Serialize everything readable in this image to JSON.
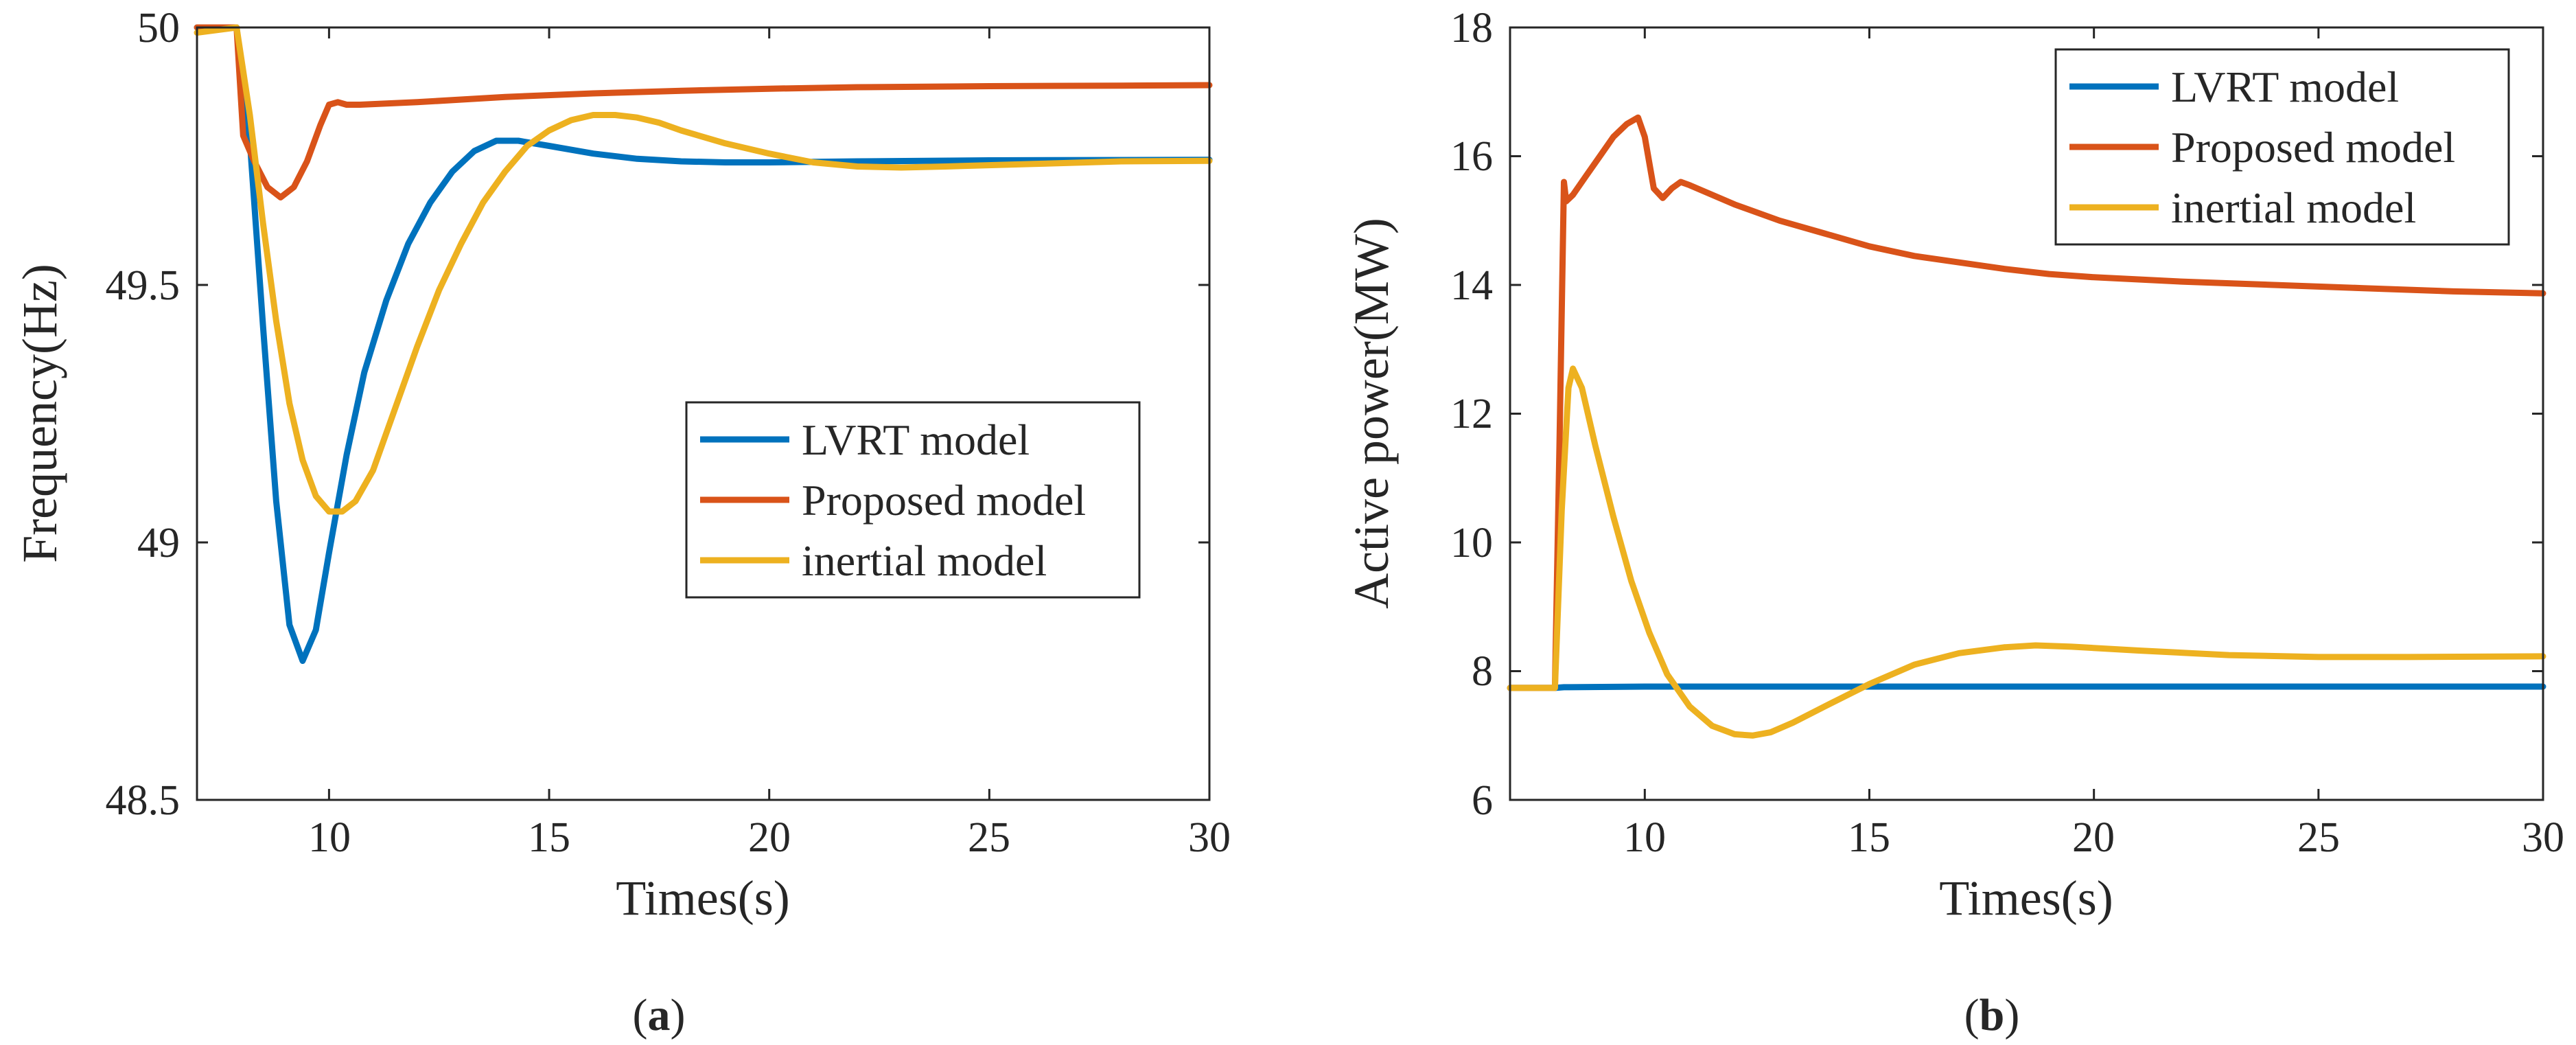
{
  "chart_data": [
    {
      "type": "line",
      "id": "a",
      "panel_label": "a",
      "xlabel": "Times(s)",
      "ylabel": "Frequency(Hz)",
      "xlim": [
        7,
        30
      ],
      "ylim": [
        48.5,
        50
      ],
      "xticks": [
        10,
        15,
        20,
        25,
        30
      ],
      "yticks": [
        48.5,
        49,
        49.5,
        50
      ],
      "ytick_labels": [
        "48.5",
        "49",
        "49.5",
        "50"
      ],
      "legend_position": "center-right",
      "series": [
        {
          "name": "LVRT model",
          "color": "#0072BD",
          "x": [
            7,
            7.9,
            8.2,
            8.5,
            8.8,
            9.1,
            9.4,
            9.7,
            10.0,
            10.4,
            10.8,
            11.3,
            11.8,
            12.3,
            12.8,
            13.3,
            13.8,
            14.3,
            15,
            16,
            17,
            18,
            19,
            20,
            22,
            25,
            30
          ],
          "values": [
            50,
            50,
            49.78,
            49.42,
            49.08,
            48.84,
            48.77,
            48.83,
            48.98,
            49.17,
            49.33,
            49.47,
            49.58,
            49.66,
            49.72,
            49.76,
            49.78,
            49.78,
            49.77,
            49.755,
            49.745,
            49.74,
            49.738,
            49.738,
            49.74,
            49.742,
            49.743
          ]
        },
        {
          "name": "Proposed model",
          "color": "#D95319",
          "x": [
            7,
            7.9,
            8.05,
            8.3,
            8.6,
            8.9,
            9.2,
            9.5,
            9.8,
            10.0,
            10.2,
            10.4,
            10.7,
            12,
            14,
            16,
            18,
            20,
            22,
            25,
            28,
            30
          ],
          "values": [
            50,
            50,
            49.79,
            49.74,
            49.69,
            49.67,
            49.69,
            49.74,
            49.81,
            49.85,
            49.855,
            49.85,
            49.85,
            49.855,
            49.865,
            49.872,
            49.877,
            49.881,
            49.884,
            49.886,
            49.887,
            49.888
          ]
        },
        {
          "name": "inertial model",
          "color": "#EDB120",
          "x": [
            7,
            7.9,
            8.2,
            8.5,
            8.8,
            9.1,
            9.4,
            9.7,
            10.0,
            10.3,
            10.6,
            11.0,
            11.5,
            12.0,
            12.5,
            13.0,
            13.5,
            14.0,
            14.5,
            15.0,
            15.5,
            16.0,
            16.5,
            17.0,
            17.5,
            18,
            19,
            20,
            21,
            22,
            23,
            24,
            26,
            28,
            30
          ],
          "values": [
            49.99,
            50,
            49.83,
            49.62,
            49.43,
            49.27,
            49.16,
            49.09,
            49.06,
            49.06,
            49.08,
            49.14,
            49.26,
            49.38,
            49.49,
            49.58,
            49.66,
            49.72,
            49.77,
            49.8,
            49.82,
            49.83,
            49.83,
            49.825,
            49.815,
            49.8,
            49.775,
            49.755,
            49.738,
            49.73,
            49.728,
            49.73,
            49.735,
            49.74,
            49.741
          ]
        }
      ]
    },
    {
      "type": "line",
      "id": "b",
      "panel_label": "b",
      "xlabel": "Times(s)",
      "ylabel": "Active power(MW)",
      "xlim": [
        7,
        30
      ],
      "ylim": [
        6,
        18
      ],
      "xticks": [
        10,
        15,
        20,
        25,
        30
      ],
      "yticks": [
        6,
        8,
        10,
        12,
        14,
        16,
        18
      ],
      "ytick_labels": [
        "6",
        "8",
        "10",
        "12",
        "14",
        "16",
        "18"
      ],
      "legend_position": "top-right",
      "series": [
        {
          "name": "LVRT model",
          "color": "#0072BD",
          "x": [
            7,
            8.0,
            8.2,
            10,
            15,
            20,
            25,
            30
          ],
          "values": [
            7.74,
            7.74,
            7.75,
            7.76,
            7.76,
            7.76,
            7.76,
            7.76
          ]
        },
        {
          "name": "Proposed model",
          "color": "#D95319",
          "x": [
            7,
            8.0,
            8.1,
            8.2,
            8.25,
            8.4,
            8.7,
            9.0,
            9.3,
            9.6,
            9.85,
            10.0,
            10.2,
            10.4,
            10.6,
            10.8,
            11.0,
            12,
            13,
            14,
            15,
            16,
            17,
            18,
            19,
            20,
            22,
            24,
            26,
            28,
            30
          ],
          "values": [
            7.74,
            7.74,
            11.5,
            15.6,
            15.3,
            15.4,
            15.7,
            16.0,
            16.3,
            16.5,
            16.6,
            16.3,
            15.5,
            15.35,
            15.5,
            15.6,
            15.55,
            15.25,
            15.0,
            14.8,
            14.6,
            14.45,
            14.35,
            14.25,
            14.17,
            14.12,
            14.05,
            14.0,
            13.95,
            13.9,
            13.87
          ]
        },
        {
          "name": "inertial model",
          "color": "#EDB120",
          "x": [
            7,
            8.0,
            8.15,
            8.3,
            8.4,
            8.6,
            8.9,
            9.3,
            9.7,
            10.1,
            10.5,
            11.0,
            11.5,
            12.0,
            12.4,
            12.8,
            13.3,
            14.0,
            15.0,
            16.0,
            17.0,
            18.0,
            18.7,
            19.5,
            21,
            23,
            25,
            27,
            30
          ],
          "values": [
            7.74,
            7.74,
            10.5,
            12.4,
            12.7,
            12.4,
            11.5,
            10.4,
            9.4,
            8.6,
            7.95,
            7.45,
            7.15,
            7.02,
            7.0,
            7.05,
            7.2,
            7.45,
            7.8,
            8.1,
            8.28,
            8.37,
            8.4,
            8.38,
            8.32,
            8.25,
            8.22,
            8.22,
            8.23
          ]
        }
      ]
    }
  ]
}
